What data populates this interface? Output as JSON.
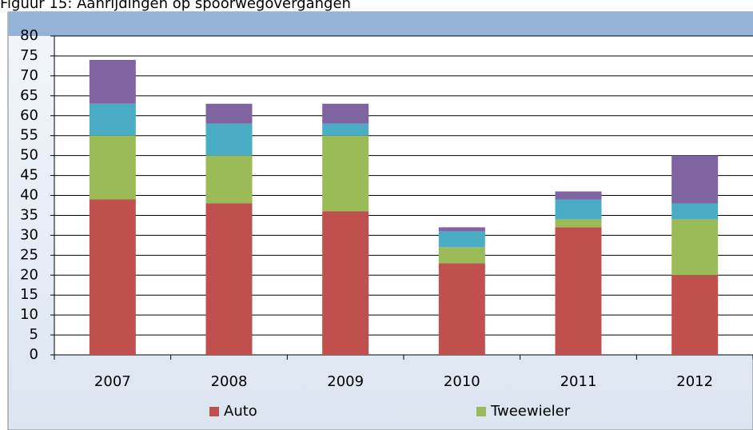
{
  "chart_data": {
    "type": "stacked_bar",
    "title": "Figuur 15: Aanrijdingen op spoorwegovergangen",
    "categories": [
      "2007",
      "2008",
      "2009",
      "2010",
      "2011",
      "2012"
    ],
    "series": [
      {
        "name": "Auto",
        "color": "#c0504d",
        "values": [
          39,
          38,
          36,
          23,
          32,
          20
        ]
      },
      {
        "name": "Tweewieler",
        "color": "#9bbb59",
        "values": [
          16,
          12,
          19,
          4,
          2,
          14
        ]
      },
      {
        "color": "#4bacc6",
        "values": [
          8,
          8,
          3,
          4,
          5,
          4
        ]
      },
      {
        "color": "#8064a2",
        "values": [
          11,
          5,
          5,
          1,
          2,
          12
        ]
      }
    ],
    "ylim": [
      0,
      80
    ],
    "yticks": [
      0,
      5,
      10,
      15,
      20,
      25,
      30,
      35,
      40,
      45,
      50,
      55,
      60,
      65,
      70,
      75,
      80
    ],
    "grid": true,
    "legend": "bottom"
  }
}
